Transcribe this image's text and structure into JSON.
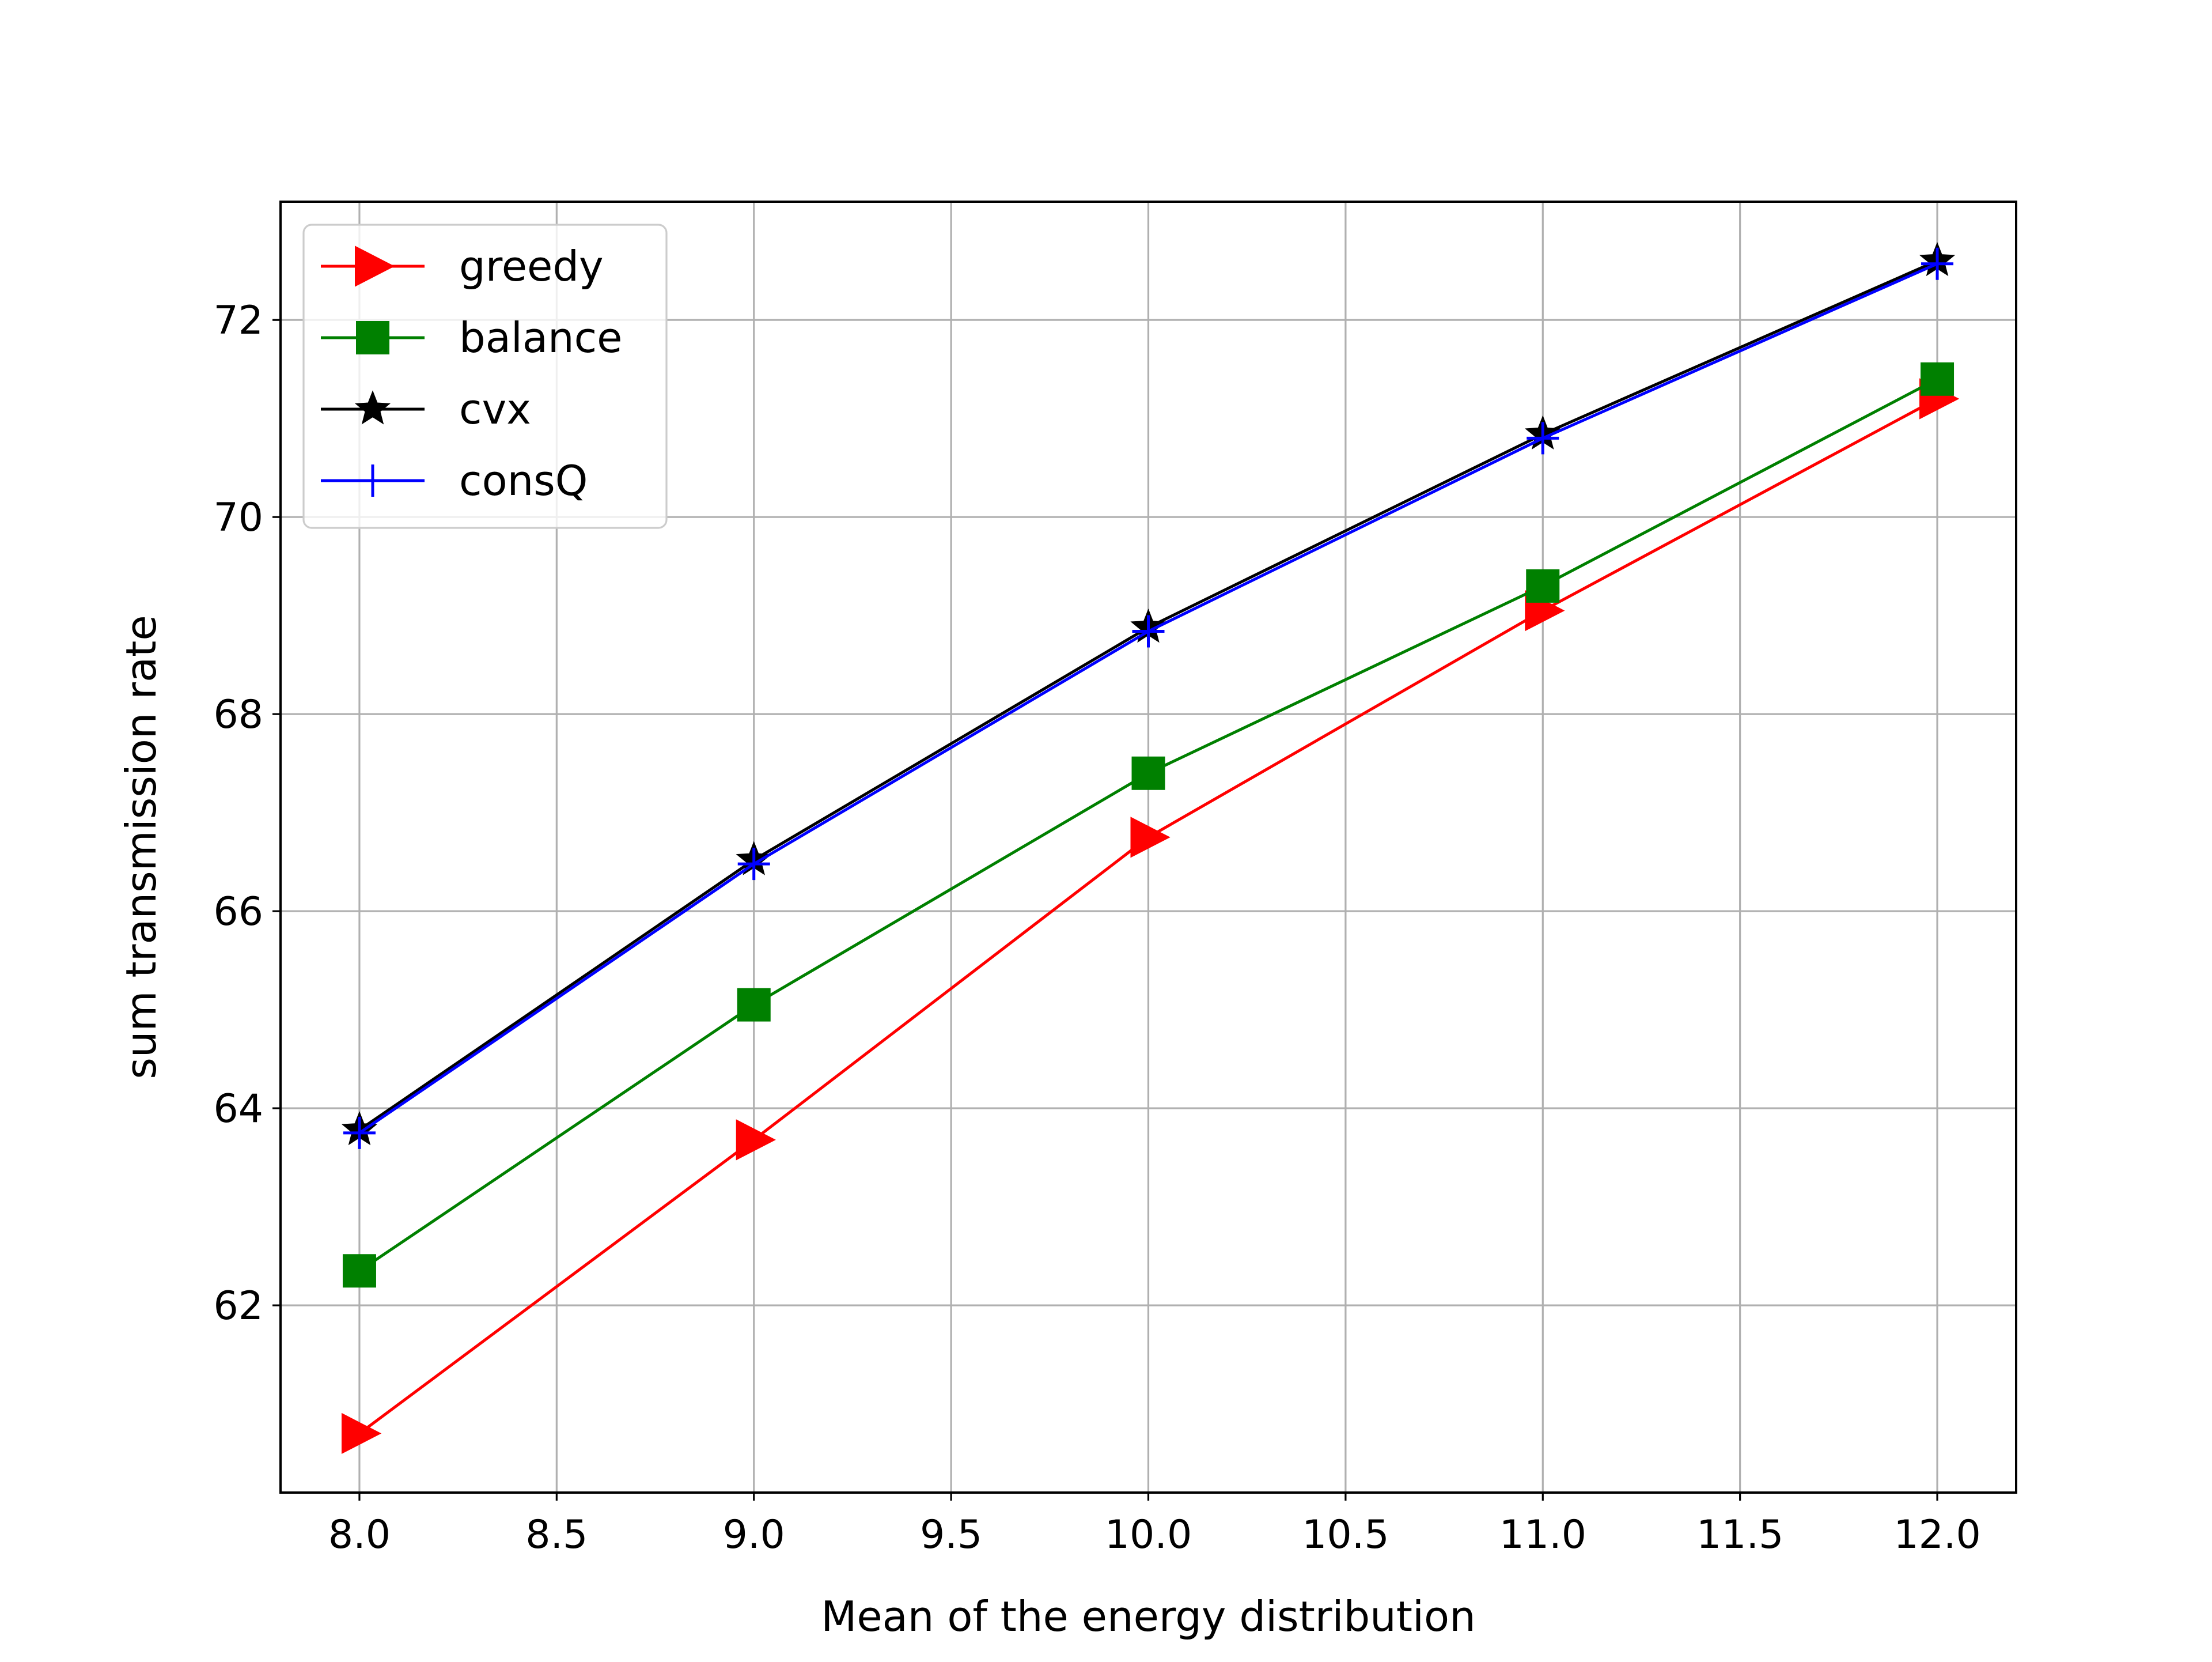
{
  "chart_data": {
    "type": "line",
    "title": "",
    "xlabel": "Mean of the energy distribution",
    "ylabel": "sum transmission rate",
    "xlim": [
      7.8,
      12.2
    ],
    "ylim": [
      60.1,
      73.2
    ],
    "xticks": [
      8.0,
      8.5,
      9.0,
      9.5,
      10.0,
      10.5,
      11.0,
      11.5,
      12.0
    ],
    "xtick_labels": [
      "8.0",
      "8.5",
      "9.0",
      "9.5",
      "10.0",
      "10.5",
      "11.0",
      "11.5",
      "12.0"
    ],
    "yticks": [
      62,
      64,
      66,
      68,
      70,
      72
    ],
    "ytick_labels": [
      "62",
      "64",
      "66",
      "68",
      "70",
      "72"
    ],
    "grid": true,
    "legend_position": "top-left",
    "x": [
      8.0,
      9.0,
      10.0,
      11.0,
      12.0
    ],
    "series": [
      {
        "name": "greedy",
        "values": [
          60.7,
          63.68,
          66.75,
          69.05,
          71.2
        ],
        "color": "#ff0000",
        "marker": "triangle-right"
      },
      {
        "name": "balance",
        "values": [
          62.35,
          65.05,
          67.4,
          69.3,
          71.4
        ],
        "color": "#008000",
        "marker": "square"
      },
      {
        "name": "cvx",
        "values": [
          63.78,
          66.52,
          68.88,
          70.84,
          72.6
        ],
        "color": "#000000",
        "marker": "star"
      },
      {
        "name": "consQ",
        "values": [
          63.75,
          66.48,
          68.84,
          70.8,
          72.57
        ],
        "color": "#0000ff",
        "marker": "plus"
      }
    ]
  }
}
